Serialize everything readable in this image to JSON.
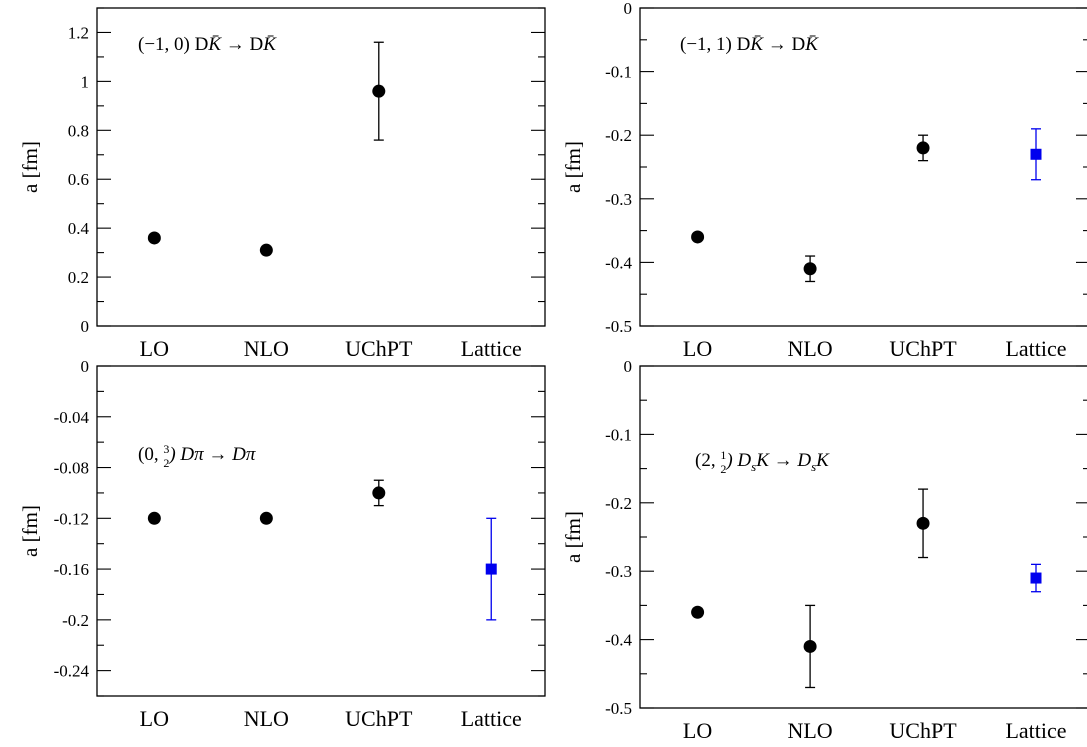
{
  "chart_data": [
    {
      "type": "scatter",
      "title": "(−1,0) DK̄ → DK̄",
      "title_parts": [
        "(−1, 0) D",
        "K̄",
        " → D",
        "K̄"
      ],
      "categories": [
        "LO",
        "NLO",
        "UChPT",
        "Lattice"
      ],
      "ylabel": "a [fm]",
      "ylim": [
        0,
        1.3
      ],
      "yticks": [
        "0",
        "0.2",
        "0.4",
        "0.6",
        "0.8",
        "1",
        "1.2"
      ],
      "ytick_values": [
        0,
        0.2,
        0.4,
        0.6,
        0.8,
        1.0,
        1.2
      ],
      "minor_step": 0.1,
      "series": [
        {
          "color": "#000000",
          "marker": "circle",
          "points": [
            {
              "category": "LO",
              "y": 0.36,
              "err": null
            },
            {
              "category": "NLO",
              "y": 0.31,
              "err": null
            },
            {
              "category": "UChPT",
              "y": 0.96,
              "err": 0.2
            }
          ]
        }
      ]
    },
    {
      "type": "scatter",
      "title": "(−1,1) DK̄ → DK̄",
      "title_parts": [
        "(−1, 1) D",
        "K̄",
        " → D",
        "K̄"
      ],
      "categories": [
        "LO",
        "NLO",
        "UChPT",
        "Lattice"
      ],
      "ylabel": "a [fm]",
      "ylim": [
        -0.5,
        0
      ],
      "yticks": [
        "-0.5",
        "-0.4",
        "-0.3",
        "-0.2",
        "-0.1",
        "0"
      ],
      "ytick_values": [
        -0.5,
        -0.4,
        -0.3,
        -0.2,
        -0.1,
        0
      ],
      "minor_step": 0.05,
      "series": [
        {
          "color": "#000000",
          "marker": "circle",
          "points": [
            {
              "category": "LO",
              "y": -0.36,
              "err": null
            },
            {
              "category": "NLO",
              "y": -0.41,
              "err": 0.02
            },
            {
              "category": "UChPT",
              "y": -0.22,
              "err": 0.02
            }
          ]
        },
        {
          "color": "#0000ee",
          "marker": "square",
          "points": [
            {
              "category": "Lattice",
              "y": -0.23,
              "err": 0.04
            }
          ]
        }
      ]
    },
    {
      "type": "scatter",
      "title": "(0,3/2) Dπ → Dπ",
      "title_parts": [
        "(0, ",
        "3",
        "2",
        ") Dπ → Dπ"
      ],
      "categories": [
        "LO",
        "NLO",
        "UChPT",
        "Lattice"
      ],
      "ylabel": "a [fm]",
      "ylim": [
        -0.26,
        0
      ],
      "yticks": [
        "-0.24",
        "-0.2",
        "-0.16",
        "-0.12",
        "-0.08",
        "-0.04",
        "0"
      ],
      "ytick_values": [
        -0.24,
        -0.2,
        -0.16,
        -0.12,
        -0.08,
        -0.04,
        0
      ],
      "minor_step": 0.02,
      "series": [
        {
          "color": "#000000",
          "marker": "circle",
          "points": [
            {
              "category": "LO",
              "y": -0.12,
              "err": null
            },
            {
              "category": "NLO",
              "y": -0.12,
              "err": null
            },
            {
              "category": "UChPT",
              "y": -0.1,
              "err": 0.01
            }
          ]
        },
        {
          "color": "#0000ee",
          "marker": "square",
          "points": [
            {
              "category": "Lattice",
              "y": -0.16,
              "err": 0.04
            }
          ]
        }
      ]
    },
    {
      "type": "scatter",
      "title": "(2,1/2) DsK → DsK",
      "title_parts": [
        "(2, ",
        "1",
        "2",
        ") D",
        "s",
        "K → D",
        "s",
        "K"
      ],
      "categories": [
        "LO",
        "NLO",
        "UChPT",
        "Lattice"
      ],
      "ylabel": "a [fm]",
      "ylim": [
        -0.5,
        0
      ],
      "yticks": [
        "-0.5",
        "-0.4",
        "-0.3",
        "-0.2",
        "-0.1",
        "0"
      ],
      "ytick_values": [
        -0.5,
        -0.4,
        -0.3,
        -0.2,
        -0.1,
        0
      ],
      "minor_step": 0.05,
      "series": [
        {
          "color": "#000000",
          "marker": "circle",
          "points": [
            {
              "category": "LO",
              "y": -0.36,
              "err": null
            },
            {
              "category": "NLO",
              "y": -0.41,
              "err": 0.06
            },
            {
              "category": "UChPT",
              "y": -0.23,
              "err": 0.05
            }
          ]
        },
        {
          "color": "#0000ee",
          "marker": "square",
          "points": [
            {
              "category": "Lattice",
              "y": -0.31,
              "err": 0.02
            }
          ]
        }
      ]
    }
  ]
}
